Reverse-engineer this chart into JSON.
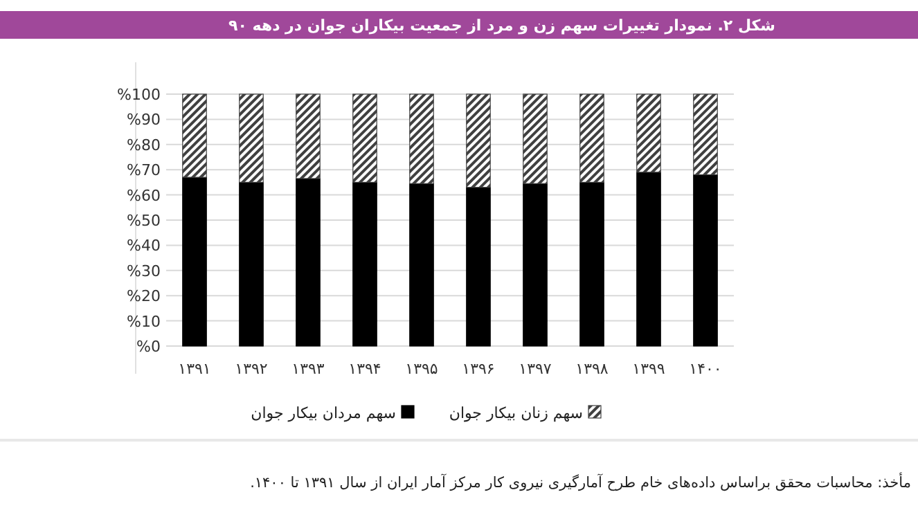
{
  "chart_data": {
    "type": "bar",
    "stacked": true,
    "title": "شکل ۲. نمودار تغییرات سهم زن و مرد از جمعیت بیکاران جوان در دهه ۹۰",
    "categories": [
      "۱۳۹۱",
      "۱۳۹۲",
      "۱۳۹۳",
      "۱۳۹۴",
      "۱۳۹۵",
      "۱۳۹۶",
      "۱۳۹۷",
      "۱۳۹۸",
      "۱۳۹۹",
      "۱۴۰۰"
    ],
    "series": [
      {
        "name": "سهم مردان بیکار جوان",
        "color": "#000000",
        "values": [
          67,
          65,
          66.5,
          65,
          64.5,
          63,
          64.5,
          65,
          69,
          68
        ]
      },
      {
        "name": "سهم زنان بیکار جوان",
        "color": "#404040",
        "values": [
          33,
          35,
          33.5,
          35,
          35.5,
          37,
          35.5,
          35,
          31,
          32
        ]
      }
    ],
    "ylim": [
      0,
      100
    ],
    "yticks": [
      {
        "value": 0,
        "label": "%0"
      },
      {
        "value": 10,
        "label": "%10"
      },
      {
        "value": 20,
        "label": "%20"
      },
      {
        "value": 30,
        "label": "%30"
      },
      {
        "value": 40,
        "label": "%40"
      },
      {
        "value": 50,
        "label": "%50"
      },
      {
        "value": 60,
        "label": "%60"
      },
      {
        "value": 70,
        "label": "%70"
      },
      {
        "value": 80,
        "label": "%80"
      },
      {
        "value": 90,
        "label": "%90"
      },
      {
        "value": 100,
        "label": "%100"
      }
    ],
    "grid": "y",
    "legend": "bottom",
    "annotations": [
      "مأخذ: محاسبات محقق براساس داده‌های خام طرح آمارگیری نیروی کار مرکز آمار ایران از سال ۱۳۹۱ تا ۱۴۰۰."
    ]
  }
}
